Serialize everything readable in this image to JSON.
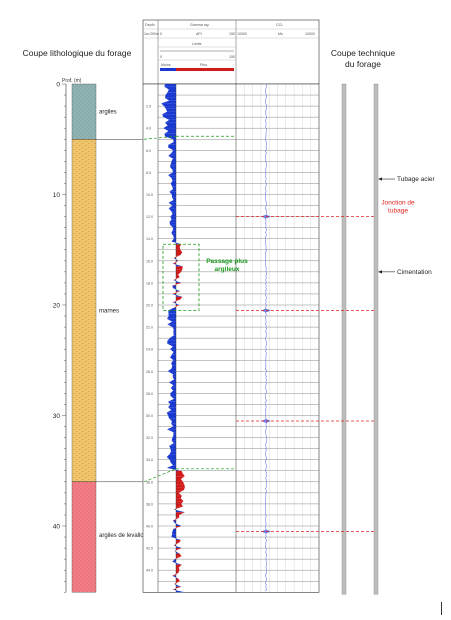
{
  "lithology": {
    "title": "Coupe lithologique du forage",
    "depth_axis_label": "Prof. (m)",
    "depth_ticks": [
      "0",
      "10",
      "20",
      "30",
      "40"
    ],
    "depth_tick_values": [
      0,
      10,
      20,
      30,
      40
    ],
    "layers": [
      {
        "name": "argiles",
        "top_m": 0,
        "bottom_m": 5,
        "color": "#8fb3b3"
      },
      {
        "name": "marnes",
        "top_m": 5,
        "bottom_m": 36,
        "color": "#f0c46a"
      },
      {
        "name": "argiles de levallois",
        "top_m": 36,
        "bottom_m": 46,
        "color": "#f47d86"
      }
    ]
  },
  "log": {
    "header": {
      "depth_label": "Depth",
      "depth_unit": "1m:200m",
      "gamma_label": "Gamma ray",
      "gamma_unit": "API",
      "gamma_min": "0",
      "gamma_max": "150",
      "ccl_label": "CCL",
      "ccl_unit": "Ms",
      "ccl_left": "10000",
      "ccl_right": "10000",
      "limit_label": "Limite",
      "limit_min": "0",
      "limit_max": "150",
      "legend_left": "Moins",
      "legend_right": "Plus",
      "legend_left_color": "#1a3ad1",
      "legend_right_color": "#d11a1a"
    },
    "depth_labels": [
      "2.0",
      "4.0",
      "6.0",
      "8.0",
      "10.0",
      "12.0",
      "14.0",
      "16.0",
      "18.0",
      "20.0",
      "22.0",
      "24.0",
      "26.0",
      "28.0",
      "30.0",
      "32.0",
      "34.0",
      "36.0",
      "38.0",
      "40.0",
      "42.0",
      "44.0"
    ],
    "depth_label_values": [
      2,
      4,
      6,
      8,
      10,
      12,
      14,
      16,
      18,
      20,
      22,
      24,
      26,
      28,
      30,
      32,
      34,
      36,
      38,
      40,
      42,
      44
    ],
    "annotations": {
      "passage": "Passage plus argileux",
      "jonction": "Jonction de tubage",
      "tubage_acier": "Tubage acier",
      "cimentation": "Cimentation"
    },
    "casing_joints_m": [
      12,
      20.5,
      30.5,
      40.5
    ],
    "passage_zone_m": [
      14.5,
      20.5
    ]
  },
  "technique": {
    "title": "Coupe technique du forage"
  },
  "colors": {
    "green_annotation": "#1a9a1a",
    "red_annotation": "#e02020",
    "gamma_low": "#1a3ad1",
    "gamma_high": "#d11a1a",
    "ccl_trace": "#7080e0"
  }
}
